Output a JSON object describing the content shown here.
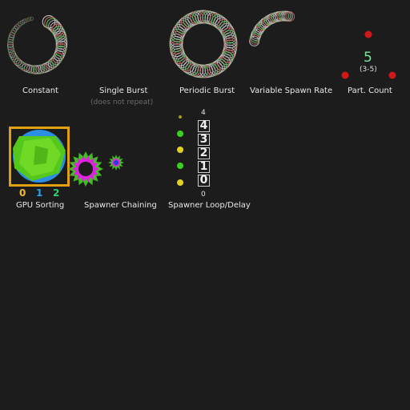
{
  "effects": {
    "constant": {
      "label": "Constant"
    },
    "single_burst": {
      "label": "Single Burst",
      "note": "(does not repeat)"
    },
    "periodic_burst": {
      "label": "Periodic Burst"
    },
    "variable_spawn_rate": {
      "label": "Variable Spawn Rate"
    },
    "part_count": {
      "label": "Part. Count",
      "count": "5",
      "range": "(3-5)",
      "count_color": "#7fe0a0"
    },
    "gpu_sorting": {
      "label": "GPU Sorting",
      "indices": [
        "0",
        "1",
        "2"
      ],
      "index_colors": [
        "#f0c020",
        "#2aa0e8",
        "#2ed070"
      ],
      "frame_color": "#e0a010"
    },
    "spawner_chaining": {
      "label": "Spawner Chaining"
    },
    "spawner_loop_delay": {
      "label": "Spawner Loop/Delay",
      "top_value": "4",
      "bottom_value": "0",
      "counters": [
        "4",
        "3",
        "2",
        "1",
        "0"
      ]
    }
  },
  "colors": {
    "background": "#1c1c1c",
    "particle_red": "#d01818",
    "particle_green": "#3cd020",
    "particle_yellow": "#e0d020",
    "burst_magenta": "#e020e0",
    "burst_blue": "#2040e0"
  }
}
